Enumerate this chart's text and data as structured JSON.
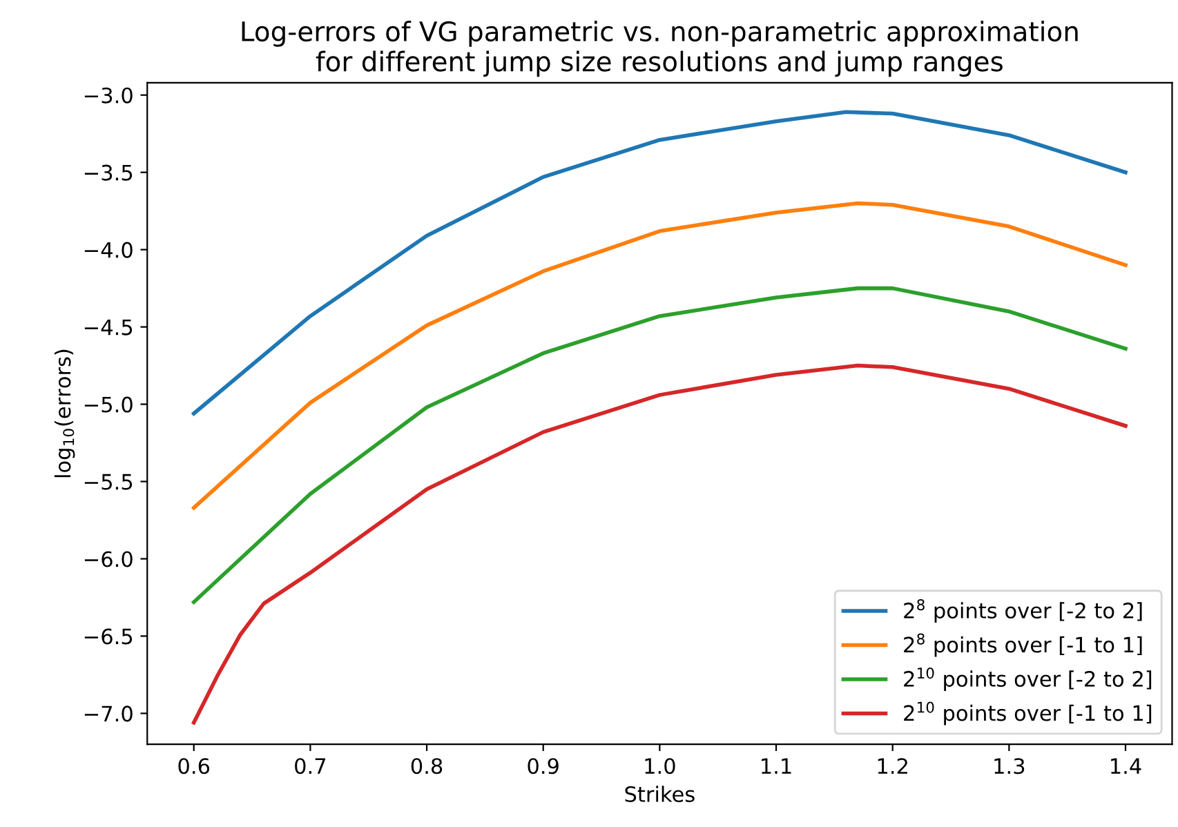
{
  "chart_data": {
    "type": "line",
    "title": "Log-errors of VG parametric vs. non-parametric approximation\nfor different jump size resolutions and jump ranges",
    "xlabel": "Strikes",
    "ylabel": "log$_{10}$(errors)",
    "xlim": [
      0.56,
      1.44
    ],
    "xticks": [
      0.6,
      0.7,
      0.8,
      0.9,
      {
        "value": 1,
        "label": "1.0"
      },
      1.1,
      1.2,
      1.3,
      1.4
    ],
    "ylim": [
      -7.2,
      -2.92
    ],
    "yticks": [
      {
        "value": -7,
        "label": "−7.0"
      },
      {
        "value": -6.5,
        "label": "−6.5"
      },
      {
        "value": -6,
        "label": "−6.0"
      },
      {
        "value": -5.5,
        "label": "−5.5"
      },
      {
        "value": -5,
        "label": "−5.0"
      },
      {
        "value": -4.5,
        "label": "−4.5"
      },
      {
        "value": -4,
        "label": "−4.0"
      },
      {
        "value": -3.5,
        "label": "−3.5"
      },
      {
        "value": -3,
        "label": "−3.0"
      }
    ],
    "grid": false,
    "legend": "lower right",
    "marker": "none",
    "line_style": "solid",
    "series": [
      {
        "name": "2$^{8}$ points over [-2 to 2]",
        "color": "#1f77b4",
        "x": [
          0.6,
          0.7,
          0.8,
          0.9,
          1.0,
          1.1,
          1.16,
          1.2,
          1.3,
          1.4
        ],
        "values": [
          -5.06,
          -4.43,
          -3.91,
          -3.53,
          -3.29,
          -3.17,
          -3.11,
          -3.12,
          -3.26,
          -3.5
        ]
      },
      {
        "name": "2$^{8}$ points over [-1 to 1]",
        "color": "#ff7f0e",
        "x": [
          0.6,
          0.7,
          0.8,
          0.9,
          1.0,
          1.1,
          1.17,
          1.2,
          1.3,
          1.4
        ],
        "values": [
          -5.67,
          -4.99,
          -4.49,
          -4.14,
          -3.88,
          -3.76,
          -3.7,
          -3.71,
          -3.85,
          -4.1
        ]
      },
      {
        "name": "2$^{10}$ points over [-2 to 2]",
        "color": "#2ca02c",
        "x": [
          0.6,
          0.7,
          0.8,
          0.9,
          1.0,
          1.1,
          1.17,
          1.2,
          1.3,
          1.4
        ],
        "values": [
          -6.28,
          -5.58,
          -5.02,
          -4.67,
          -4.43,
          -4.31,
          -4.25,
          -4.25,
          -4.4,
          -4.64
        ]
      },
      {
        "name": "2$^{10}$ points over [-1 to 1]",
        "color": "#d62728",
        "x": [
          0.6,
          0.62,
          0.64,
          0.66,
          0.7,
          0.8,
          0.9,
          1.0,
          1.1,
          1.17,
          1.2,
          1.3,
          1.4
        ],
        "values": [
          -7.06,
          -6.76,
          -6.49,
          -6.29,
          -6.09,
          -5.55,
          -5.18,
          -4.94,
          -4.81,
          -4.75,
          -4.76,
          -4.9,
          -5.14
        ]
      }
    ]
  }
}
